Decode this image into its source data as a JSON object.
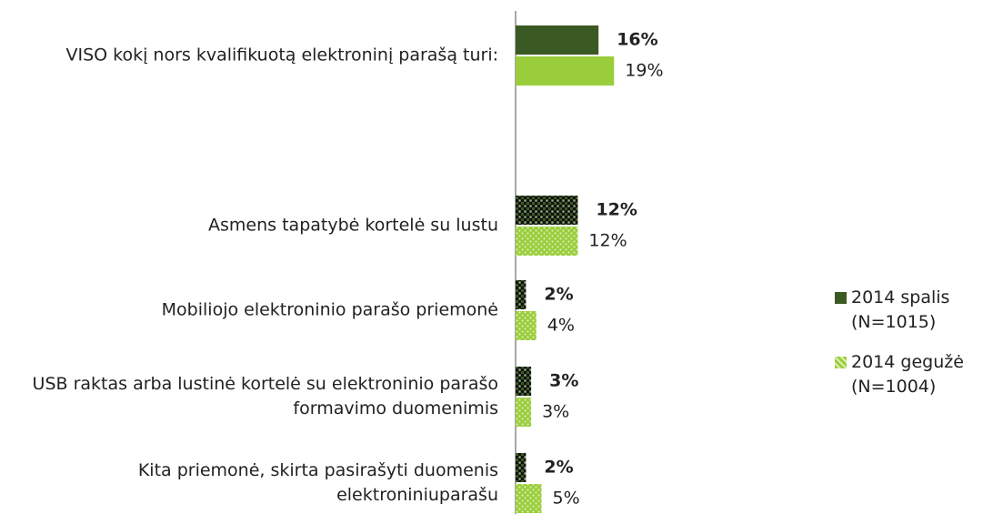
{
  "chart_data": {
    "type": "hbar",
    "categories": [
      "VISO kokį nors kvalifikuotą elektroninį parašą turi:",
      "Asmens tapatybė kortelė su lustu",
      "Mobiliojo elektroninio parašo priemonė",
      "USB raktas arba lustinė kortelė su elektroninio parašo formavimo duomenimis",
      "Kita priemonė, skirta pasirašyti duomenis elektroniniuparašu"
    ],
    "series": [
      {
        "name": "2014 spalis (N=1015)",
        "color": "#3b5a23",
        "values": [
          16,
          12,
          2,
          3,
          2
        ],
        "value_labels": [
          "16%",
          "12%",
          "2%",
          "3%",
          "2%"
        ],
        "pattern": [
          "solid",
          "checker",
          "checker",
          "checker",
          "checker"
        ]
      },
      {
        "name": "2014 gegužė (N=1004)",
        "color": "#9acd3c",
        "values": [
          19,
          12,
          4,
          3,
          5
        ],
        "value_labels": [
          "19%",
          "12%",
          "4%",
          "3%",
          "5%"
        ],
        "pattern": [
          "solid",
          "checker",
          "checker",
          "checker",
          "checker"
        ]
      }
    ],
    "legend": "right"
  }
}
